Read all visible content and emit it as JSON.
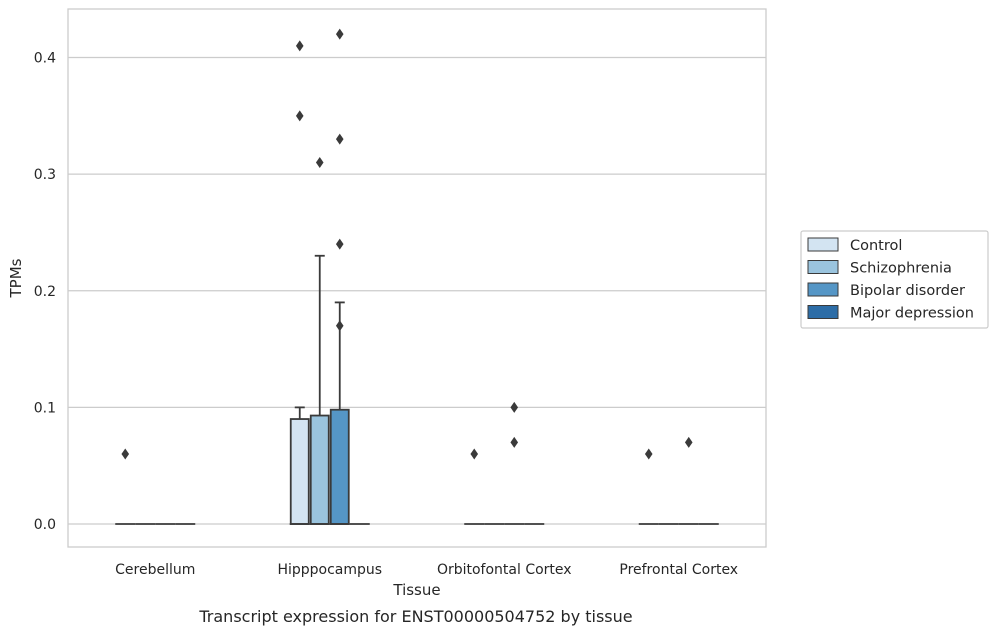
{
  "chart_data": {
    "type": "box",
    "caption": "Transcript expression for ENST00000504752 by tissue",
    "xlabel": "Tissue",
    "ylabel": "TPMs",
    "ylim": [
      -0.02,
      0.44
    ],
    "yticks": [
      0.0,
      0.1,
      0.2,
      0.3,
      0.4
    ],
    "ytick_labels": [
      "0.0",
      "0.1",
      "0.2",
      "0.3",
      "0.4"
    ],
    "grid": "horizontal",
    "legend_position": "right",
    "categories": [
      "Cerebellum",
      "Hipppocampus",
      "Orbitofontal Cortex",
      "Prefrontal Cortex"
    ],
    "series": [
      {
        "name": "Control",
        "color": "#d3e4f2",
        "boxes": [
          {
            "q1": 0,
            "median": 0,
            "q3": 0,
            "whisker_low": 0,
            "whisker_high": 0,
            "outliers": [
              0.06
            ]
          },
          {
            "q1": 0,
            "median": 0,
            "q3": 0.09,
            "whisker_low": 0,
            "whisker_high": 0.1,
            "outliers": [
              0.35,
              0.41
            ]
          },
          {
            "q1": 0,
            "median": 0,
            "q3": 0,
            "whisker_low": 0,
            "whisker_high": 0,
            "outliers": [
              0.06
            ]
          },
          {
            "q1": 0,
            "median": 0,
            "q3": 0,
            "whisker_low": 0,
            "whisker_high": 0,
            "outliers": [
              0.06
            ]
          }
        ]
      },
      {
        "name": "Schizophrenia",
        "color": "#9ac4de",
        "boxes": [
          {
            "q1": 0,
            "median": 0,
            "q3": 0,
            "whisker_low": 0,
            "whisker_high": 0,
            "outliers": []
          },
          {
            "q1": 0,
            "median": 0,
            "q3": 0.093,
            "whisker_low": 0,
            "whisker_high": 0.23,
            "outliers": [
              0.31
            ]
          },
          {
            "q1": 0,
            "median": 0,
            "q3": 0,
            "whisker_low": 0,
            "whisker_high": 0,
            "outliers": []
          },
          {
            "q1": 0,
            "median": 0,
            "q3": 0,
            "whisker_low": 0,
            "whisker_high": 0,
            "outliers": []
          }
        ]
      },
      {
        "name": "Bipolar disorder",
        "color": "#5596c6",
        "boxes": [
          {
            "q1": 0,
            "median": 0,
            "q3": 0,
            "whisker_low": 0,
            "whisker_high": 0,
            "outliers": []
          },
          {
            "q1": 0,
            "median": 0,
            "q3": 0.098,
            "whisker_low": 0,
            "whisker_high": 0.19,
            "outliers": [
              0.17,
              0.24,
              0.33,
              0.42
            ]
          },
          {
            "q1": 0,
            "median": 0,
            "q3": 0,
            "whisker_low": 0,
            "whisker_high": 0,
            "outliers": [
              0.07,
              0.1
            ]
          },
          {
            "q1": 0,
            "median": 0,
            "q3": 0,
            "whisker_low": 0,
            "whisker_high": 0,
            "outliers": [
              0.07
            ]
          }
        ]
      },
      {
        "name": "Major depression",
        "color": "#2d6da7",
        "boxes": [
          {
            "q1": 0,
            "median": 0,
            "q3": 0,
            "whisker_low": 0,
            "whisker_high": 0,
            "outliers": []
          },
          {
            "q1": 0,
            "median": 0,
            "q3": 0,
            "whisker_low": 0,
            "whisker_high": 0,
            "outliers": []
          },
          {
            "q1": 0,
            "median": 0,
            "q3": 0,
            "whisker_low": 0,
            "whisker_high": 0,
            "outliers": []
          },
          {
            "q1": 0,
            "median": 0,
            "q3": 0,
            "whisker_low": 0,
            "whisker_high": 0,
            "outliers": []
          }
        ]
      }
    ]
  }
}
